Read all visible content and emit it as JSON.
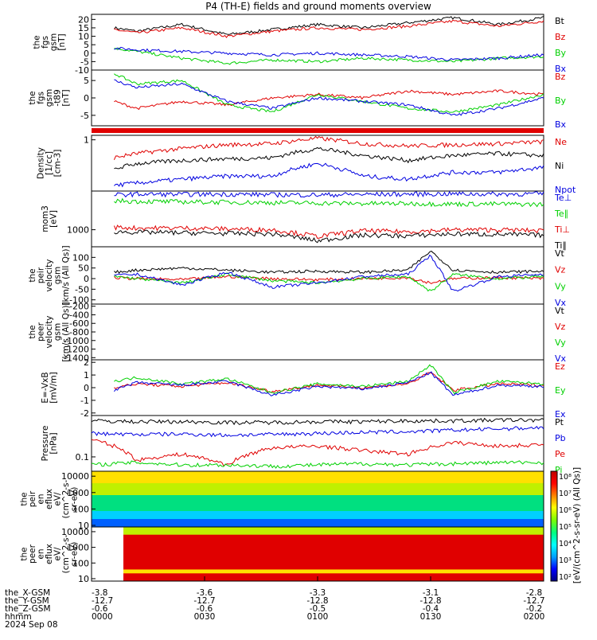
{
  "title": "P4 (TH-E) fields and ground moments overview",
  "date": "2024 Sep 08",
  "colors": {
    "black": "#000000",
    "red": "#e00000",
    "green": "#00d000",
    "blue": "#0000e0"
  },
  "chart_data": [
    {
      "type": "line",
      "id": "fgs-gsm",
      "ylabel": [
        "the",
        "fgs",
        "gsm",
        "[nT]"
      ],
      "ylim": [
        -10,
        23
      ],
      "yticks": [
        "20",
        "15",
        "10",
        "5",
        "0",
        "-5",
        "-10"
      ],
      "ytickvals": [
        20,
        15,
        10,
        5,
        0,
        -5,
        -10
      ],
      "legend": [
        "Bt",
        "Bz",
        "By",
        "Bx"
      ],
      "series": [
        {
          "name": "Bt",
          "color": "black",
          "x": [
            0.05,
            0.1,
            0.2,
            0.3,
            0.4,
            0.5,
            0.6,
            0.7,
            0.8,
            0.9,
            1.0
          ],
          "values": [
            15,
            13,
            17,
            11,
            14,
            17,
            15,
            18,
            21,
            17,
            21
          ]
        },
        {
          "name": "Bz",
          "color": "red",
          "x": [
            0.05,
            0.1,
            0.2,
            0.3,
            0.4,
            0.5,
            0.6,
            0.7,
            0.8,
            0.9,
            1.0
          ],
          "values": [
            14,
            12,
            15,
            10,
            13,
            15,
            14,
            16,
            19,
            16,
            19
          ]
        },
        {
          "name": "By",
          "color": "green",
          "x": [
            0.05,
            0.1,
            0.2,
            0.3,
            0.4,
            0.5,
            0.6,
            0.7,
            0.8,
            0.9,
            1.0
          ],
          "values": [
            3,
            1,
            -3,
            -6,
            -4,
            -5,
            -3,
            -4,
            -5,
            -3,
            -2
          ]
        },
        {
          "name": "Bx",
          "color": "blue",
          "x": [
            0.05,
            0.1,
            0.2,
            0.3,
            0.4,
            0.5,
            0.6,
            0.7,
            0.8,
            0.9,
            1.0
          ],
          "values": [
            3,
            2,
            1,
            0,
            -1,
            0,
            -1,
            -2,
            -4,
            -3,
            -1
          ]
        }
      ]
    },
    {
      "type": "line",
      "id": "fgs-gsm-dif",
      "ylabel": [
        "the",
        "fgs",
        "gsm",
        "-t89",
        "[nT]"
      ],
      "ylim": [
        -8,
        8
      ],
      "yticks": [
        "5",
        "0",
        "-5"
      ],
      "ytickvals": [
        5,
        0,
        -5
      ],
      "legend": [
        "Bz",
        "By",
        "Bx"
      ],
      "series": [
        {
          "name": "Bz",
          "color": "red",
          "x": [
            0.05,
            0.1,
            0.2,
            0.3,
            0.4,
            0.5,
            0.6,
            0.7,
            0.8,
            0.9,
            1.0
          ],
          "values": [
            -1,
            -3,
            -1,
            -2,
            0,
            1,
            0,
            2,
            1,
            2,
            1
          ]
        },
        {
          "name": "By",
          "color": "green",
          "x": [
            0.05,
            0.1,
            0.2,
            0.3,
            0.4,
            0.5,
            0.6,
            0.7,
            0.8,
            0.9,
            1.0
          ],
          "values": [
            7,
            4,
            5,
            -2,
            -4,
            1,
            -1,
            -3,
            -4,
            -2,
            1
          ]
        },
        {
          "name": "Bx",
          "color": "blue",
          "x": [
            0.05,
            0.1,
            0.2,
            0.3,
            0.4,
            0.5,
            0.6,
            0.7,
            0.8,
            0.9,
            1.0
          ],
          "values": [
            5,
            3,
            4,
            -1,
            -3,
            0,
            -1,
            -2,
            -5,
            -3,
            0
          ]
        }
      ]
    },
    {
      "type": "line",
      "id": "density",
      "ylabel": [
        "Density",
        "[1/cc]",
        "[cm-3]"
      ],
      "ylim": [
        0.05,
        1.3
      ],
      "scale": "log",
      "yticks": [
        "1"
      ],
      "ytickvals": [
        1
      ],
      "legend": [
        "Ne",
        "Ni",
        "Npot"
      ],
      "series": [
        {
          "name": "Ne",
          "color": "red",
          "x": [
            0.05,
            0.1,
            0.2,
            0.3,
            0.4,
            0.5,
            0.6,
            0.7,
            0.8,
            0.9,
            1.0
          ],
          "values": [
            0.35,
            0.45,
            0.6,
            0.75,
            0.8,
            1.1,
            0.8,
            0.7,
            0.75,
            0.8,
            0.9
          ]
        },
        {
          "name": "Ni",
          "color": "black",
          "x": [
            0.05,
            0.1,
            0.2,
            0.3,
            0.4,
            0.5,
            0.6,
            0.7,
            0.8,
            0.9,
            1.0
          ],
          "values": [
            0.18,
            0.25,
            0.3,
            0.33,
            0.35,
            0.6,
            0.4,
            0.3,
            0.4,
            0.45,
            0.4
          ]
        },
        {
          "name": "Npot",
          "color": "blue",
          "x": [
            0.05,
            0.1,
            0.2,
            0.3,
            0.4,
            0.5,
            0.6,
            0.7,
            0.8,
            0.9,
            1.0
          ],
          "values": [
            0.07,
            0.08,
            0.1,
            0.12,
            0.12,
            0.25,
            0.12,
            0.1,
            0.15,
            0.15,
            0.2
          ]
        }
      ]
    },
    {
      "type": "line",
      "id": "temperature",
      "ylabel": [
        "mom3",
        "[eV]"
      ],
      "ylim": [
        400,
        8000
      ],
      "scale": "log",
      "yticks": [
        "1000"
      ],
      "ytickvals": [
        1000
      ],
      "legend": [
        "Te⊥",
        "Te∥",
        "Ti⊥",
        "Ti∥"
      ],
      "series": [
        {
          "name": "Te⊥",
          "color": "blue",
          "x": [
            0.05,
            0.1,
            0.2,
            0.3,
            0.4,
            0.5,
            0.6,
            0.7,
            0.8,
            0.9,
            1.0
          ],
          "values": [
            6500,
            6800,
            6700,
            6800,
            6600,
            6500,
            6700,
            6800,
            6900,
            6800,
            6900
          ]
        },
        {
          "name": "Te∥",
          "color": "green",
          "x": [
            0.05,
            0.1,
            0.2,
            0.3,
            0.4,
            0.5,
            0.6,
            0.7,
            0.8,
            0.9,
            1.0
          ],
          "values": [
            4800,
            4600,
            4500,
            4400,
            4300,
            4200,
            4100,
            4100,
            4000,
            4000,
            3900
          ]
        },
        {
          "name": "Ti⊥",
          "color": "red",
          "x": [
            0.05,
            0.1,
            0.2,
            0.3,
            0.4,
            0.5,
            0.6,
            0.7,
            0.8,
            0.9,
            1.0
          ],
          "values": [
            1150,
            1100,
            1100,
            1050,
            1000,
            700,
            950,
            900,
            1000,
            1000,
            950
          ]
        },
        {
          "name": "Ti∥",
          "color": "black",
          "x": [
            0.05,
            0.1,
            0.2,
            0.3,
            0.4,
            0.5,
            0.6,
            0.7,
            0.8,
            0.9,
            1.0
          ],
          "values": [
            900,
            880,
            850,
            820,
            800,
            550,
            750,
            720,
            800,
            780,
            750
          ]
        }
      ]
    },
    {
      "type": "line",
      "id": "peir-velocity",
      "ylabel": [
        "the",
        "peir",
        "velocity",
        "gsm",
        "[km/s (All Qs)]"
      ],
      "ylim": [
        -120,
        150
      ],
      "yticks": [
        "100",
        "50",
        "0",
        "-50",
        "-100"
      ],
      "ytickvals": [
        100,
        50,
        0,
        -50,
        -100
      ],
      "legend": [
        "Vt",
        "Vz",
        "Vy",
        "Vx"
      ],
      "series": [
        {
          "name": "Vt",
          "color": "black",
          "x": [
            0.05,
            0.1,
            0.2,
            0.3,
            0.4,
            0.5,
            0.6,
            0.7,
            0.75,
            0.8,
            0.9,
            1.0
          ],
          "values": [
            30,
            40,
            50,
            40,
            30,
            35,
            30,
            40,
            130,
            40,
            30,
            35
          ]
        },
        {
          "name": "Vz",
          "color": "red",
          "x": [
            0.05,
            0.1,
            0.2,
            0.3,
            0.4,
            0.5,
            0.6,
            0.7,
            0.75,
            0.8,
            0.9,
            1.0
          ],
          "values": [
            5,
            0,
            -5,
            10,
            0,
            -5,
            0,
            5,
            -20,
            0,
            5,
            0
          ]
        },
        {
          "name": "Vy",
          "color": "green",
          "x": [
            0.05,
            0.1,
            0.2,
            0.3,
            0.4,
            0.5,
            0.6,
            0.7,
            0.75,
            0.8,
            0.9,
            1.0
          ],
          "values": [
            10,
            0,
            -20,
            20,
            -10,
            -20,
            0,
            10,
            -60,
            20,
            0,
            10
          ]
        },
        {
          "name": "Vx",
          "color": "blue",
          "x": [
            0.05,
            0.1,
            0.2,
            0.3,
            0.4,
            0.5,
            0.6,
            0.7,
            0.75,
            0.8,
            0.9,
            1.0
          ],
          "values": [
            15,
            20,
            -30,
            30,
            -40,
            -20,
            10,
            20,
            110,
            -60,
            10,
            20
          ]
        }
      ]
    },
    {
      "type": "line",
      "id": "peer-velocity",
      "ylabel": [
        "the",
        "peer",
        "velocity",
        "gsm",
        "[km/s (All Qs)]"
      ],
      "ylim": [
        -1450,
        -150
      ],
      "yticks": [
        "-200",
        "-400",
        "-600",
        "-800",
        "-1000",
        "-1200",
        "-1400"
      ],
      "ytickvals": [
        -200,
        -400,
        -600,
        -800,
        -1000,
        -1200,
        -1400
      ],
      "legend": [
        "Vt",
        "Vz",
        "Vy",
        "Vx"
      ],
      "series": []
    },
    {
      "type": "line",
      "id": "efield",
      "ylabel": [
        "E=-VxB",
        "[mV/m]"
      ],
      "ylim": [
        -2.2,
        2.2
      ],
      "yticks": [
        "2",
        "1",
        "0",
        "-1",
        "-2"
      ],
      "ytickvals": [
        2,
        1,
        0,
        -1,
        -2
      ],
      "legend": [
        "Ez",
        "Ey",
        "Ex"
      ],
      "series": [
        {
          "name": "Ez",
          "color": "red",
          "x": [
            0.05,
            0.1,
            0.2,
            0.3,
            0.4,
            0.5,
            0.6,
            0.7,
            0.75,
            0.8,
            0.9,
            1.0
          ],
          "values": [
            0,
            0.3,
            0.1,
            0.4,
            -0.3,
            0.2,
            0,
            0.3,
            1.2,
            -0.2,
            0.3,
            0.2
          ]
        },
        {
          "name": "Ey",
          "color": "green",
          "x": [
            0.05,
            0.1,
            0.2,
            0.3,
            0.4,
            0.5,
            0.6,
            0.7,
            0.75,
            0.8,
            0.9,
            1.0
          ],
          "values": [
            0.5,
            0.8,
            0.3,
            0.7,
            -0.4,
            0.3,
            0.1,
            0.5,
            1.8,
            -0.4,
            0.5,
            0.3
          ]
        },
        {
          "name": "Ex",
          "color": "blue",
          "x": [
            0.05,
            0.1,
            0.2,
            0.3,
            0.4,
            0.5,
            0.6,
            0.7,
            0.75,
            0.8,
            0.9,
            1.0
          ],
          "values": [
            -0.2,
            0.4,
            0.2,
            0.5,
            -0.6,
            0.1,
            -0.1,
            0.4,
            1.2,
            -0.6,
            0.2,
            0.1
          ]
        }
      ]
    },
    {
      "type": "line",
      "id": "pressure",
      "ylabel": [
        "Pressure",
        "[nPa]"
      ],
      "ylim": [
        0.04,
        1.4
      ],
      "scale": "log",
      "yticks": [
        "0.1"
      ],
      "ytickvals": [
        0.1
      ],
      "legend": [
        "Pt",
        "Pb",
        "Pe",
        "Pi"
      ],
      "series": [
        {
          "name": "Pt",
          "color": "black",
          "x": [
            0.0,
            0.1,
            0.2,
            0.3,
            0.4,
            0.5,
            0.6,
            0.7,
            0.8,
            0.9,
            1.0
          ],
          "values": [
            1.0,
            0.95,
            0.95,
            0.9,
            0.9,
            0.95,
            0.95,
            1.0,
            1.0,
            1.05,
            1.05
          ]
        },
        {
          "name": "Pb",
          "color": "blue",
          "x": [
            0.0,
            0.1,
            0.2,
            0.3,
            0.4,
            0.5,
            0.6,
            0.7,
            0.8,
            0.9,
            1.0
          ],
          "values": [
            0.45,
            0.42,
            0.43,
            0.4,
            0.42,
            0.45,
            0.48,
            0.5,
            0.55,
            0.6,
            0.65
          ]
        },
        {
          "name": "Pe",
          "color": "red",
          "x": [
            0.0,
            0.05,
            0.1,
            0.2,
            0.3,
            0.4,
            0.5,
            0.6,
            0.7,
            0.8,
            0.9,
            1.0
          ],
          "values": [
            0.3,
            0.2,
            0.08,
            0.12,
            0.06,
            0.18,
            0.2,
            0.15,
            0.12,
            0.25,
            0.2,
            0.22
          ]
        },
        {
          "name": "Pi",
          "color": "green",
          "x": [
            0.0,
            0.1,
            0.2,
            0.3,
            0.4,
            0.5,
            0.6,
            0.7,
            0.8,
            0.9,
            1.0
          ],
          "values": [
            0.06,
            0.07,
            0.06,
            0.06,
            0.055,
            0.06,
            0.065,
            0.06,
            0.065,
            0.07,
            0.07
          ]
        }
      ]
    },
    {
      "type": "heatmap",
      "id": "peir-eflux",
      "ylabel": [
        "the",
        "peir",
        "en",
        "eflux",
        "eV/",
        "(cm^2-s-",
        "sr-eV)"
      ],
      "scale": "log",
      "yticks": [
        "10000",
        "1000",
        "100",
        "10"
      ],
      "ytickvals": [
        10000,
        1000,
        100,
        10
      ],
      "ylim": [
        8,
        20000
      ]
    },
    {
      "type": "heatmap",
      "id": "peer-eflux",
      "ylabel": [
        "the",
        "peer",
        "en",
        "eflux",
        "eV/",
        "(cm^2-s-",
        "sr-eV)"
      ],
      "scale": "log",
      "yticks": [
        "10000",
        "1000",
        "100",
        "10"
      ],
      "ytickvals": [
        10000,
        1000,
        100,
        10
      ],
      "ylim": [
        7,
        20000
      ]
    }
  ],
  "colorbar": {
    "label": "[eV/(cm^2-s-sr-eV) (All Qs)]",
    "ticks": [
      "10⁸",
      "10⁷",
      "10⁶",
      "10⁵",
      "10⁴",
      "10³",
      "10²"
    ]
  },
  "xaxis": {
    "row_labels": [
      "the_X-GSM",
      "the_Y-GSM",
      "the_Z-GSM",
      "hhmm",
      "2024 Sep 08"
    ],
    "ticks": [
      {
        "x": 0.0,
        "vals": [
          "-3.8",
          "-12.7",
          "-0.6",
          "0000"
        ]
      },
      {
        "x": 0.25,
        "vals": [
          "-3.6",
          "-12.7",
          "-0.6",
          "0030"
        ]
      },
      {
        "x": 0.5,
        "vals": [
          "-3.3",
          "-12.8",
          "-0.5",
          "0100"
        ]
      },
      {
        "x": 0.75,
        "vals": [
          "-3.1",
          "-12.8",
          "-0.4",
          "0130"
        ]
      },
      {
        "x": 1.0,
        "vals": [
          "-2.8",
          "-12.7",
          "-0.2",
          "0200"
        ]
      }
    ]
  }
}
